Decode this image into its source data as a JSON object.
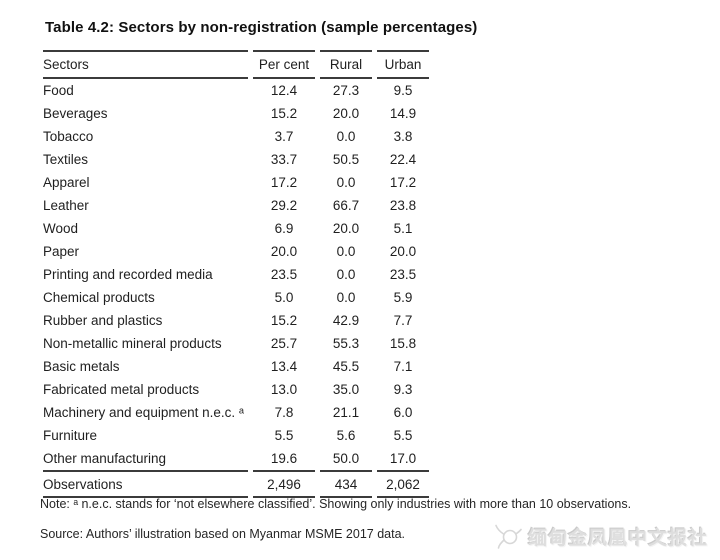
{
  "title": "Table 4.2: Sectors by non-registration (sample percentages)",
  "table": {
    "columns": [
      "Sectors",
      "Per cent",
      "Rural",
      "Urban"
    ],
    "rows": [
      {
        "sector": "Food",
        "values": [
          "12.4",
          "27.3",
          "9.5"
        ]
      },
      {
        "sector": "Beverages",
        "values": [
          "15.2",
          "20.0",
          "14.9"
        ]
      },
      {
        "sector": "Tobacco",
        "values": [
          "3.7",
          "0.0",
          "3.8"
        ]
      },
      {
        "sector": "Textiles",
        "values": [
          "33.7",
          "50.5",
          "22.4"
        ]
      },
      {
        "sector": "Apparel",
        "values": [
          "17.2",
          "0.0",
          "17.2"
        ]
      },
      {
        "sector": "Leather",
        "values": [
          "29.2",
          "66.7",
          "23.8"
        ]
      },
      {
        "sector": "Wood",
        "values": [
          "6.9",
          "20.0",
          "5.1"
        ]
      },
      {
        "sector": "Paper",
        "values": [
          "20.0",
          "0.0",
          "20.0"
        ]
      },
      {
        "sector": "Printing and recorded media",
        "values": [
          "23.5",
          "0.0",
          "23.5"
        ]
      },
      {
        "sector": "Chemical products",
        "values": [
          "5.0",
          "0.0",
          "5.9"
        ]
      },
      {
        "sector": "Rubber and plastics",
        "values": [
          "15.2",
          "42.9",
          "7.7"
        ]
      },
      {
        "sector": "Non-metallic mineral products",
        "values": [
          "25.7",
          "55.3",
          "15.8"
        ]
      },
      {
        "sector": "Basic metals",
        "values": [
          "13.4",
          "45.5",
          "7.1"
        ]
      },
      {
        "sector": "Fabricated metal products",
        "values": [
          "13.0",
          "35.0",
          "9.3"
        ]
      },
      {
        "sector": "Machinery and equipment n.e.c. ᵃ",
        "values": [
          "7.8",
          "21.1",
          "6.0"
        ]
      },
      {
        "sector": "Furniture",
        "values": [
          "5.5",
          "5.6",
          "5.5"
        ]
      },
      {
        "sector": "Other manufacturing",
        "values": [
          "19.6",
          "50.0",
          "17.0"
        ]
      }
    ],
    "footer": {
      "label": "Observations",
      "values": [
        "2,496",
        "434",
        "2,062"
      ]
    }
  },
  "note": "Note: ᵃ n.e.c. stands for ‘not elsewhere classified’. Showing only industries with more than 10 observations.",
  "source": "Source: Authors’ illustration based on Myanmar MSME 2017 data.",
  "watermark": {
    "text": "缅甸金凤凰中文报社"
  },
  "colors": {
    "text": "#1f1f1f",
    "rule": "#3b3b3b",
    "watermark": "#dedede"
  }
}
